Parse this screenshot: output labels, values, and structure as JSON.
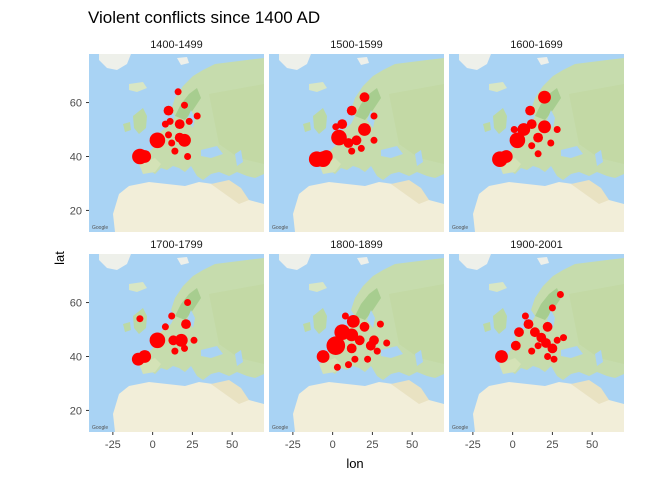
{
  "chart_data": {
    "type": "scatter",
    "title": "Violent conflicts since 1400 AD",
    "xlabel": "lon",
    "ylabel": "lat",
    "xlim": [
      -40,
      70
    ],
    "ylim": [
      12,
      78
    ],
    "x_ticks": [
      -25,
      0,
      25,
      50
    ],
    "x_tick_labels": [
      "-25",
      "0",
      "25",
      "50"
    ],
    "y_ticks": [
      20,
      40,
      60
    ],
    "y_tick_labels": [
      "20",
      "40",
      "60"
    ],
    "point_color": "#ff0000",
    "background": "terrain map of Europe, North Africa and western Asia",
    "map_credit": "Google",
    "grid": false,
    "legend": "none",
    "panels": [
      {
        "label": "1400-1499",
        "points": [
          {
            "lon": -8,
            "lat": 40,
            "size": 5
          },
          {
            "lon": -5,
            "lat": 40,
            "size": 4
          },
          {
            "lon": 3,
            "lat": 46,
            "size": 5
          },
          {
            "lon": 10,
            "lat": 57,
            "size": 3
          },
          {
            "lon": 11,
            "lat": 53,
            "size": 2
          },
          {
            "lon": 8,
            "lat": 52,
            "size": 2
          },
          {
            "lon": 16,
            "lat": 64,
            "size": 2
          },
          {
            "lon": 20,
            "lat": 59,
            "size": 2
          },
          {
            "lon": 17,
            "lat": 52,
            "size": 3
          },
          {
            "lon": 17,
            "lat": 47,
            "size": 3
          },
          {
            "lon": 20,
            "lat": 46,
            "size": 4
          },
          {
            "lon": 12,
            "lat": 45,
            "size": 2
          },
          {
            "lon": 10,
            "lat": 48,
            "size": 2
          },
          {
            "lon": 14,
            "lat": 42,
            "size": 2
          },
          {
            "lon": 22,
            "lat": 40,
            "size": 2
          },
          {
            "lon": 28,
            "lat": 55,
            "size": 2
          },
          {
            "lon": 23,
            "lat": 53,
            "size": 2
          }
        ]
      },
      {
        "label": "1500-1599",
        "points": [
          {
            "lon": -10,
            "lat": 39,
            "size": 5
          },
          {
            "lon": -6,
            "lat": 39,
            "size": 5
          },
          {
            "lon": -4,
            "lat": 40,
            "size": 4
          },
          {
            "lon": 4,
            "lat": 47,
            "size": 5
          },
          {
            "lon": 6,
            "lat": 52,
            "size": 3
          },
          {
            "lon": 12,
            "lat": 57,
            "size": 3
          },
          {
            "lon": 20,
            "lat": 62,
            "size": 3
          },
          {
            "lon": 20,
            "lat": 50,
            "size": 4
          },
          {
            "lon": 15,
            "lat": 46,
            "size": 3
          },
          {
            "lon": 10,
            "lat": 45,
            "size": 3
          },
          {
            "lon": 26,
            "lat": 46,
            "size": 2
          },
          {
            "lon": 12,
            "lat": 42,
            "size": 2
          },
          {
            "lon": 26,
            "lat": 55,
            "size": 2
          },
          {
            "lon": 2,
            "lat": 51,
            "size": 2
          },
          {
            "lon": 18,
            "lat": 43,
            "size": 2
          }
        ]
      },
      {
        "label": "1600-1699",
        "points": [
          {
            "lon": -8,
            "lat": 39,
            "size": 5
          },
          {
            "lon": -4,
            "lat": 40,
            "size": 4
          },
          {
            "lon": 3,
            "lat": 46,
            "size": 5
          },
          {
            "lon": 7,
            "lat": 50,
            "size": 4
          },
          {
            "lon": 12,
            "lat": 52,
            "size": 3
          },
          {
            "lon": 20,
            "lat": 51,
            "size": 4
          },
          {
            "lon": 20,
            "lat": 62,
            "size": 4
          },
          {
            "lon": 11,
            "lat": 57,
            "size": 3
          },
          {
            "lon": 16,
            "lat": 47,
            "size": 3
          },
          {
            "lon": 12,
            "lat": 44,
            "size": 2
          },
          {
            "lon": 24,
            "lat": 45,
            "size": 2
          },
          {
            "lon": 16,
            "lat": 41,
            "size": 2
          },
          {
            "lon": 28,
            "lat": 50,
            "size": 2
          },
          {
            "lon": 1,
            "lat": 50,
            "size": 2
          }
        ]
      },
      {
        "label": "1700-1799",
        "points": [
          {
            "lon": -9,
            "lat": 39,
            "size": 4
          },
          {
            "lon": -5,
            "lat": 40,
            "size": 4
          },
          {
            "lon": 3,
            "lat": 46,
            "size": 5
          },
          {
            "lon": 13,
            "lat": 46,
            "size": 3
          },
          {
            "lon": 18,
            "lat": 46,
            "size": 4
          },
          {
            "lon": 21,
            "lat": 52,
            "size": 3
          },
          {
            "lon": 22,
            "lat": 60,
            "size": 2
          },
          {
            "lon": 12,
            "lat": 55,
            "size": 2
          },
          {
            "lon": 8,
            "lat": 51,
            "size": 2
          },
          {
            "lon": -8,
            "lat": 54,
            "size": 2
          },
          {
            "lon": 26,
            "lat": 46,
            "size": 2
          },
          {
            "lon": 20,
            "lat": 43,
            "size": 2
          },
          {
            "lon": 14,
            "lat": 42,
            "size": 2
          }
        ]
      },
      {
        "label": "1800-1899",
        "points": [
          {
            "lon": -6,
            "lat": 40,
            "size": 4
          },
          {
            "lon": 2,
            "lat": 44,
            "size": 6
          },
          {
            "lon": 6,
            "lat": 49,
            "size": 5
          },
          {
            "lon": 12,
            "lat": 48,
            "size": 4
          },
          {
            "lon": 13,
            "lat": 53,
            "size": 4
          },
          {
            "lon": 20,
            "lat": 51,
            "size": 3
          },
          {
            "lon": 17,
            "lat": 46,
            "size": 3
          },
          {
            "lon": 12,
            "lat": 43,
            "size": 3
          },
          {
            "lon": 24,
            "lat": 44,
            "size": 3
          },
          {
            "lon": 26,
            "lat": 46,
            "size": 3
          },
          {
            "lon": 28,
            "lat": 42,
            "size": 2
          },
          {
            "lon": 34,
            "lat": 45,
            "size": 2
          },
          {
            "lon": 14,
            "lat": 39,
            "size": 2
          },
          {
            "lon": 3,
            "lat": 36,
            "size": 2
          },
          {
            "lon": 10,
            "lat": 37,
            "size": 2
          },
          {
            "lon": 22,
            "lat": 39,
            "size": 2
          },
          {
            "lon": 30,
            "lat": 52,
            "size": 2
          },
          {
            "lon": 8,
            "lat": 55,
            "size": 2
          }
        ]
      },
      {
        "label": "1900-2001",
        "points": [
          {
            "lon": -7,
            "lat": 40,
            "size": 4
          },
          {
            "lon": 2,
            "lat": 44,
            "size": 3
          },
          {
            "lon": 4,
            "lat": 49,
            "size": 3
          },
          {
            "lon": 10,
            "lat": 52,
            "size": 3
          },
          {
            "lon": 14,
            "lat": 49,
            "size": 3
          },
          {
            "lon": 18,
            "lat": 47,
            "size": 3
          },
          {
            "lon": 22,
            "lat": 51,
            "size": 3
          },
          {
            "lon": 21,
            "lat": 45,
            "size": 3
          },
          {
            "lon": 25,
            "lat": 43,
            "size": 3
          },
          {
            "lon": 28,
            "lat": 46,
            "size": 2
          },
          {
            "lon": 16,
            "lat": 44,
            "size": 2
          },
          {
            "lon": 12,
            "lat": 42,
            "size": 2
          },
          {
            "lon": 26,
            "lat": 39,
            "size": 2
          },
          {
            "lon": 32,
            "lat": 47,
            "size": 2
          },
          {
            "lon": 25,
            "lat": 58,
            "size": 2
          },
          {
            "lon": 30,
            "lat": 63,
            "size": 2
          },
          {
            "lon": 8,
            "lat": 55,
            "size": 2
          },
          {
            "lon": 22,
            "lat": 40,
            "size": 2
          }
        ]
      }
    ]
  }
}
